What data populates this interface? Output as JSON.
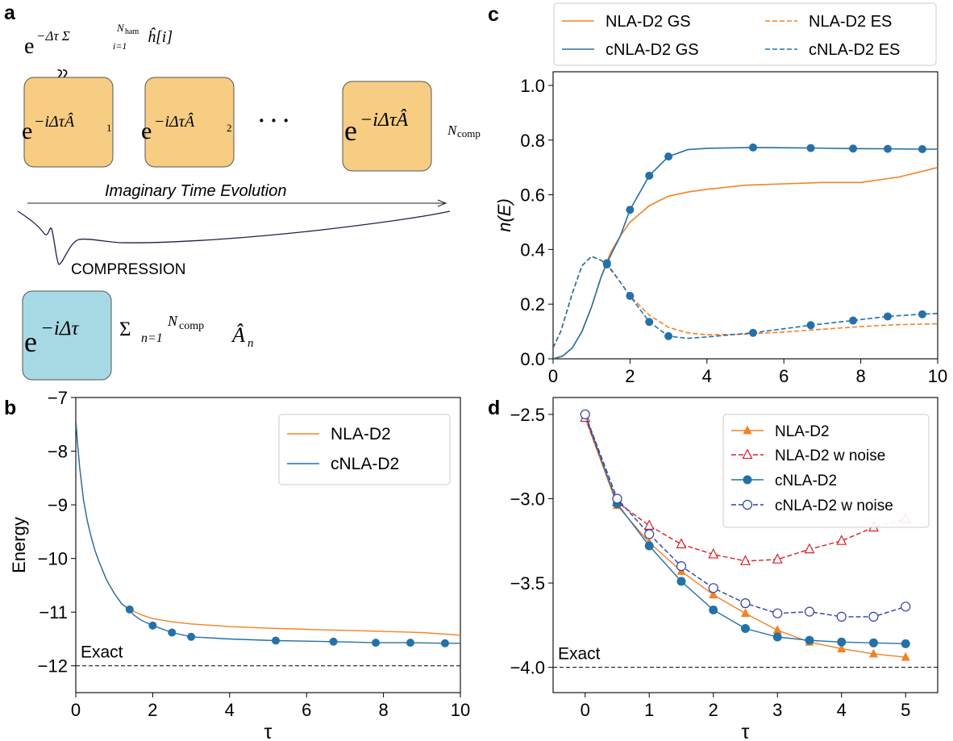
{
  "panel_labels": {
    "a": "a",
    "b": "b",
    "c": "c",
    "d": "d"
  },
  "panel_a": {
    "ham_formula_base": "e",
    "ham_formula_exponent": "−Δτ Σ",
    "ham_sum_upper": "N",
    "ham_sum_upper_sub": "ham",
    "ham_sum_lower": "i=1",
    "ham_term": "ĥ[i]",
    "approx_symbol": "≈",
    "gates": [
      {
        "base": "e",
        "exponent": "−iΔτÂ",
        "sub": "1"
      },
      {
        "base": "e",
        "exponent": "−iΔτÂ",
        "sub": "2"
      },
      {
        "base": "e",
        "exponent": "−iΔτÂ",
        "sub": "N",
        "subsub": "comp"
      }
    ],
    "ellipsis": "· · ·",
    "arrow_label": "Imaginary Time Evolution",
    "compression_label": "COMPRESSION",
    "compressed_base": "e",
    "compressed_exponent": "−iΔτ",
    "compressed_sum": "Σ",
    "compressed_sum_upper": "N",
    "compressed_sum_upper_sub": "comp",
    "compressed_sum_lower": "n=1",
    "compressed_term": "Â",
    "compressed_term_sub": "n",
    "colors": {
      "gate_fill": "#f6cd83",
      "compressed_fill": "#a7d9e4"
    }
  },
  "chart_data": [
    {
      "panel": "c",
      "type": "line",
      "xlabel": "",
      "ylabel": "n(E)",
      "xlim": [
        0,
        10
      ],
      "ylim": [
        0,
        1.05
      ],
      "xticks": [
        0,
        2,
        4,
        6,
        8,
        10
      ],
      "yticks": [
        0.0,
        0.2,
        0.4,
        0.6,
        0.8,
        1.0
      ],
      "xtick_labels": [
        "0",
        "2",
        "4",
        "6",
        "8",
        "10"
      ],
      "ytick_labels": [
        "0.0",
        "0.2",
        "0.4",
        "0.6",
        "0.8",
        "1.0"
      ],
      "legend_position": "top, outside",
      "series": [
        {
          "name": "NLA-D2 GS",
          "color": "#f28222",
          "style": "solid",
          "x": [
            0,
            0.25,
            0.5,
            0.75,
            1.0,
            1.25,
            1.5,
            1.75,
            2.0,
            2.5,
            3.0,
            3.5,
            4.0,
            5.0,
            6.0,
            7.0,
            8.0,
            9.0,
            10.0
          ],
          "y": [
            0.0,
            0.01,
            0.04,
            0.1,
            0.19,
            0.3,
            0.39,
            0.45,
            0.5,
            0.56,
            0.595,
            0.61,
            0.62,
            0.635,
            0.64,
            0.645,
            0.645,
            0.665,
            0.7
          ]
        },
        {
          "name": "NLA-D2 ES",
          "color": "#f28222",
          "style": "dashed",
          "x": [
            0,
            0.2,
            0.5,
            0.75,
            1.0,
            1.25,
            1.5,
            2.0,
            2.5,
            3.0,
            3.5,
            4.0,
            5.0,
            6.0,
            7.0,
            8.0,
            9.0,
            10.0
          ],
          "y": [
            0.04,
            0.1,
            0.24,
            0.34,
            0.375,
            0.36,
            0.33,
            0.23,
            0.16,
            0.115,
            0.095,
            0.088,
            0.09,
            0.098,
            0.108,
            0.118,
            0.125,
            0.128
          ]
        },
        {
          "name": "cNLA-D2 GS",
          "color": "#2471a8",
          "style": "solid",
          "x": [
            0,
            0.25,
            0.5,
            0.75,
            1.0,
            1.25,
            1.4,
            1.75,
            2.0,
            2.5,
            3.0,
            3.5,
            4.0,
            5.2,
            6.7,
            7.8,
            8.7,
            9.6,
            10.0
          ],
          "y": [
            0.0,
            0.01,
            0.04,
            0.1,
            0.19,
            0.3,
            0.35,
            0.45,
            0.545,
            0.67,
            0.74,
            0.765,
            0.77,
            0.773,
            0.771,
            0.769,
            0.768,
            0.767,
            0.767
          ],
          "markers_x": [
            1.4,
            2.0,
            2.5,
            3.0,
            5.2,
            6.7,
            7.8,
            8.7,
            9.6
          ],
          "markers_y": [
            0.35,
            0.545,
            0.67,
            0.74,
            0.773,
            0.771,
            0.769,
            0.768,
            0.767
          ]
        },
        {
          "name": "cNLA-D2 ES",
          "color": "#2471a8",
          "style": "dashed",
          "x": [
            0,
            0.2,
            0.5,
            0.75,
            1.0,
            1.25,
            1.4,
            1.75,
            2.0,
            2.5,
            3.0,
            3.5,
            4.0,
            5.2,
            6.7,
            7.8,
            8.7,
            9.6,
            10.0
          ],
          "y": [
            0.04,
            0.1,
            0.24,
            0.34,
            0.375,
            0.36,
            0.345,
            0.28,
            0.23,
            0.135,
            0.083,
            0.075,
            0.08,
            0.095,
            0.123,
            0.14,
            0.155,
            0.163,
            0.166
          ],
          "markers_x": [
            1.4,
            2.0,
            2.5,
            3.0,
            5.2,
            6.7,
            7.8,
            8.7,
            9.6
          ],
          "markers_y": [
            0.345,
            0.23,
            0.135,
            0.083,
            0.095,
            0.123,
            0.14,
            0.155,
            0.163
          ]
        }
      ]
    },
    {
      "panel": "b",
      "type": "line",
      "xlabel": "τ",
      "ylabel": "Energy",
      "xlim": [
        0,
        10
      ],
      "ylim": [
        -12.5,
        -7
      ],
      "xticks": [
        0,
        2,
        4,
        6,
        8,
        10
      ],
      "yticks": [
        -12,
        -11,
        -10,
        -9,
        -8,
        -7
      ],
      "xtick_labels": [
        "0",
        "2",
        "4",
        "6",
        "8",
        "10"
      ],
      "ytick_labels": [
        "−12",
        "−11",
        "−10",
        "−9",
        "−8",
        "−7"
      ],
      "legend_position": "upper right",
      "exact": -12.0,
      "exact_label": "Exact",
      "series": [
        {
          "name": "NLA-D2",
          "color": "#f28222",
          "style": "solid",
          "x": [
            0,
            0.05,
            0.1,
            0.2,
            0.3,
            0.4,
            0.5,
            0.6,
            0.8,
            1.0,
            1.2,
            1.4,
            1.7,
            2.0,
            2.5,
            3.0,
            4.0,
            5.0,
            6.0,
            7.0,
            8.0,
            9.0,
            10.0
          ],
          "y": [
            -7.4,
            -7.9,
            -8.3,
            -8.9,
            -9.3,
            -9.6,
            -9.85,
            -10.05,
            -10.4,
            -10.65,
            -10.85,
            -10.95,
            -11.05,
            -11.12,
            -11.18,
            -11.22,
            -11.27,
            -11.3,
            -11.32,
            -11.34,
            -11.36,
            -11.38,
            -11.43
          ]
        },
        {
          "name": "cNLA-D2",
          "color": "#2471a8",
          "style": "solid",
          "x": [
            0,
            0.05,
            0.1,
            0.2,
            0.3,
            0.4,
            0.5,
            0.6,
            0.8,
            1.0,
            1.2,
            1.4,
            1.5,
            1.7,
            2.0,
            2.5,
            3.0,
            4.0,
            5.2,
            6.7,
            7.8,
            8.7,
            9.6,
            10.0
          ],
          "y": [
            -7.4,
            -7.9,
            -8.3,
            -8.9,
            -9.3,
            -9.6,
            -9.85,
            -10.05,
            -10.4,
            -10.65,
            -10.85,
            -10.95,
            -11.05,
            -11.15,
            -11.25,
            -11.38,
            -11.46,
            -11.5,
            -11.53,
            -11.55,
            -11.57,
            -11.57,
            -11.58,
            -11.58
          ],
          "markers_x": [
            1.4,
            2.0,
            2.5,
            3.0,
            5.2,
            6.7,
            7.8,
            8.7,
            9.6
          ],
          "markers_y": [
            -10.95,
            -11.25,
            -11.38,
            -11.46,
            -11.53,
            -11.55,
            -11.57,
            -11.57,
            -11.58
          ]
        }
      ]
    },
    {
      "panel": "d",
      "type": "line",
      "xlabel": "τ",
      "ylabel": "",
      "xlim": [
        -0.5,
        5.5
      ],
      "ylim": [
        -4.15,
        -2.4
      ],
      "xticks": [
        0,
        1,
        2,
        3,
        4,
        5
      ],
      "yticks": [
        -4.0,
        -3.5,
        -3.0,
        -2.5
      ],
      "xtick_labels": [
        "0",
        "1",
        "2",
        "3",
        "4",
        "5"
      ],
      "ytick_labels": [
        "−4.0",
        "−3.5",
        "−3.0",
        "−2.5"
      ],
      "legend_position": "upper right",
      "exact": -4.0,
      "exact_label": "Exact",
      "series": [
        {
          "name": "NLA-D2",
          "color": "#f28222",
          "style": "solid",
          "marker": "filled-triangle",
          "x": [
            0,
            0.5,
            1.0,
            1.5,
            2.0,
            2.5,
            3.0,
            3.5,
            4.0,
            4.5,
            5.0
          ],
          "y": [
            -2.52,
            -3.04,
            -3.26,
            -3.43,
            -3.57,
            -3.68,
            -3.78,
            -3.85,
            -3.89,
            -3.92,
            -3.94
          ]
        },
        {
          "name": "NLA-D2 w noise",
          "color": "#d6202c",
          "style": "dashed",
          "marker": "open-triangle",
          "x": [
            0,
            0.5,
            1.0,
            1.5,
            2.0,
            2.5,
            3.0,
            3.5,
            4.0,
            4.5,
            5.0
          ],
          "y": [
            -2.52,
            -3.02,
            -3.16,
            -3.27,
            -3.33,
            -3.37,
            -3.36,
            -3.3,
            -3.25,
            -3.17,
            -3.12
          ]
        },
        {
          "name": "cNLA-D2",
          "color": "#2471a8",
          "style": "solid",
          "marker": "filled-circle",
          "x": [
            0,
            0.5,
            1.0,
            1.5,
            2.0,
            2.5,
            3.0,
            3.5,
            4.0,
            4.5,
            5.0
          ],
          "y": [
            -2.5,
            -3.03,
            -3.28,
            -3.49,
            -3.66,
            -3.77,
            -3.82,
            -3.84,
            -3.85,
            -3.855,
            -3.86
          ]
        },
        {
          "name": "cNLA-D2 w noise",
          "color": "#2f3ea6",
          "style": "dashed",
          "marker": "open-circle",
          "x": [
            0,
            0.5,
            1.0,
            1.5,
            2.0,
            2.5,
            3.0,
            3.5,
            4.0,
            4.5,
            5.0
          ],
          "y": [
            -2.5,
            -3.0,
            -3.21,
            -3.4,
            -3.53,
            -3.62,
            -3.68,
            -3.67,
            -3.7,
            -3.7,
            -3.64
          ]
        }
      ]
    }
  ]
}
